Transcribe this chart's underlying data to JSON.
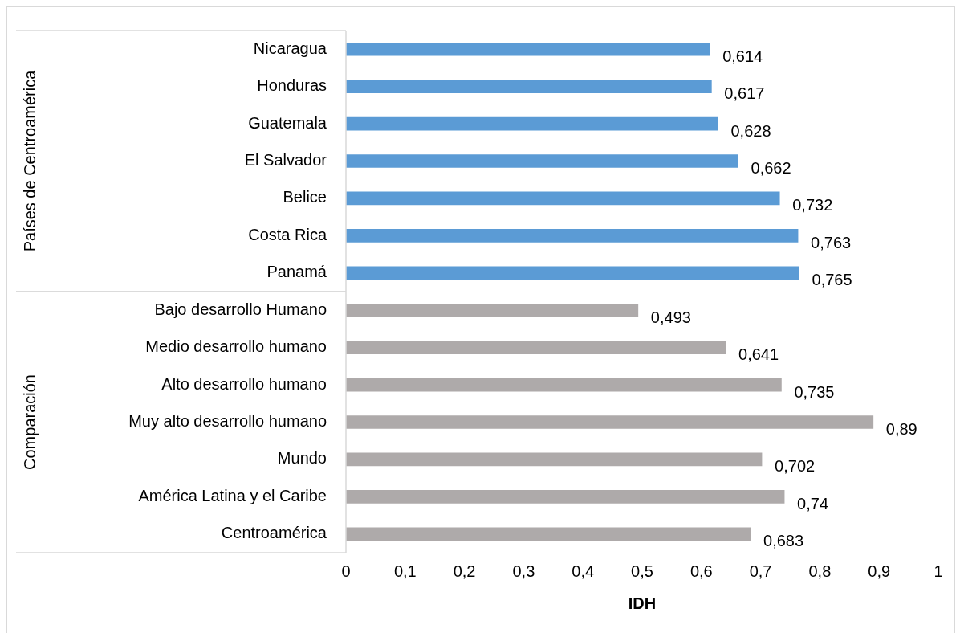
{
  "chart_data": {
    "type": "bar",
    "orientation": "horizontal",
    "xlabel": "IDH",
    "categories": [
      "Nicaragua",
      "Honduras",
      "Guatemala",
      "El Salvador",
      "Belice",
      "Costa Rica",
      "Panamá",
      "Bajo desarrollo Humano",
      "Medio desarrollo humano",
      "Alto desarrollo humano",
      "Muy alto desarrollo humano",
      "Mundo",
      "América Latina y el Caribe",
      "Centroamérica"
    ],
    "values": [
      0.614,
      0.617,
      0.628,
      0.662,
      0.732,
      0.763,
      0.765,
      0.493,
      0.641,
      0.735,
      0.89,
      0.702,
      0.74,
      0.683
    ],
    "colors": [
      "#5b9bd5",
      "#5b9bd5",
      "#5b9bd5",
      "#5b9bd5",
      "#5b9bd5",
      "#5b9bd5",
      "#5b9bd5",
      "#aeaaaa",
      "#aeaaaa",
      "#aeaaaa",
      "#aeaaaa",
      "#aeaaaa",
      "#aeaaaa",
      "#aeaaaa"
    ],
    "value_labels": [
      "0,614",
      "0,617",
      "0,628",
      "0,662",
      "0,732",
      "0,763",
      "0,765",
      "0,493",
      "0,641",
      "0,735",
      "0,89",
      "0,702",
      "0,74",
      "0,683"
    ],
    "xlim": [
      0,
      1
    ],
    "xticks": [
      0,
      {
        "value": 0.1,
        "label": "0,1"
      },
      {
        "value": 0.2,
        "label": "0,2"
      },
      {
        "value": 0.3,
        "label": "0,3"
      },
      {
        "value": 0.4,
        "label": "0,4"
      },
      {
        "value": 0.5,
        "label": "0,5"
      },
      {
        "value": 0.6,
        "label": "0,6"
      },
      {
        "value": 0.7,
        "label": "0,7"
      },
      {
        "value": 0.8,
        "label": "0,8"
      },
      {
        "value": 0.9,
        "label": "0,9"
      },
      1
    ],
    "annotations": [
      "Países de Centroamérica",
      "Comparación"
    ],
    "grid": false,
    "legend": false
  }
}
